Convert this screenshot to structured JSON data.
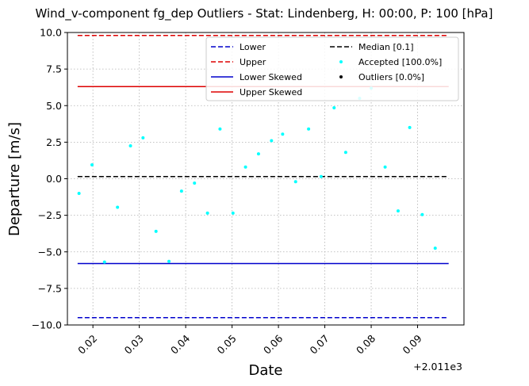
{
  "chart_data": {
    "type": "scatter",
    "title": "Wind_v-component fg_dep Outliers - Stat: Lindenberg, H: 00:00, P: 100 [hPa]",
    "xlabel": "Date",
    "ylabel": "Departure [m/s]",
    "x_offset_label": "+2.011e3",
    "xlim": [
      0.0145,
      0.1
    ],
    "ylim": [
      -10.0,
      10.0
    ],
    "x_ticks": [
      0.02,
      0.03,
      0.04,
      0.05,
      0.06,
      0.07,
      0.08,
      0.09
    ],
    "x_tick_labels": [
      "0.02",
      "0.03",
      "0.04",
      "0.05",
      "0.06",
      "0.07",
      "0.08",
      "0.09"
    ],
    "y_ticks": [
      -10.0,
      -7.5,
      -5.0,
      -2.5,
      0.0,
      2.5,
      5.0,
      7.5,
      10.0
    ],
    "y_tick_labels": [
      "−10.0",
      "−7.5",
      "−5.0",
      "−2.5",
      "0.0",
      "2.5",
      "5.0",
      "7.5",
      "10.0"
    ],
    "grid": true,
    "legend_position": "top-right",
    "hlines": [
      {
        "name": "Lower",
        "y": -9.5,
        "x_start": 0.0167,
        "x_end": 0.0967,
        "color": "#0000cc",
        "style": "dashed"
      },
      {
        "name": "Upper",
        "y": 9.8,
        "x_start": 0.0167,
        "x_end": 0.0967,
        "color": "#dd0000",
        "style": "dashed"
      },
      {
        "name": "Lower Skewed",
        "y": -5.8,
        "x_start": 0.0167,
        "x_end": 0.0967,
        "color": "#0000cc",
        "style": "solid"
      },
      {
        "name": "Upper Skewed",
        "y": 6.3,
        "x_start": 0.0167,
        "x_end": 0.0967,
        "color": "#dd0000",
        "style": "solid"
      },
      {
        "name": "Median [0.1]",
        "y": 0.15,
        "x_start": 0.0167,
        "x_end": 0.0967,
        "color": "#000000",
        "style": "dashed"
      }
    ],
    "series": [
      {
        "name": "Accepted [100.0%]",
        "color": "#00ffff",
        "points": [
          {
            "x": 0.017,
            "y": -1.0
          },
          {
            "x": 0.0198,
            "y": 0.95
          },
          {
            "x": 0.0225,
            "y": -5.7
          },
          {
            "x": 0.0253,
            "y": -1.95
          },
          {
            "x": 0.0281,
            "y": 2.25
          },
          {
            "x": 0.0308,
            "y": 2.8
          },
          {
            "x": 0.0336,
            "y": -3.6
          },
          {
            "x": 0.0364,
            "y": -5.65
          },
          {
            "x": 0.0391,
            "y": -0.85
          },
          {
            "x": 0.0419,
            "y": -0.3
          },
          {
            "x": 0.0447,
            "y": -2.35
          },
          {
            "x": 0.0474,
            "y": 3.4
          },
          {
            "x": 0.0502,
            "y": -2.35
          },
          {
            "x": 0.0529,
            "y": 0.8
          },
          {
            "x": 0.0557,
            "y": 1.7
          },
          {
            "x": 0.0585,
            "y": 2.6
          },
          {
            "x": 0.0609,
            "y": 3.05
          },
          {
            "x": 0.0637,
            "y": -0.2
          },
          {
            "x": 0.0665,
            "y": 3.4
          },
          {
            "x": 0.0692,
            "y": 0.15
          },
          {
            "x": 0.072,
            "y": 4.85
          },
          {
            "x": 0.0745,
            "y": 1.8
          },
          {
            "x": 0.0775,
            "y": 5.5
          },
          {
            "x": 0.08,
            "y": 6.2
          },
          {
            "x": 0.083,
            "y": 0.8
          },
          {
            "x": 0.0858,
            "y": -2.2
          },
          {
            "x": 0.0883,
            "y": 3.5
          },
          {
            "x": 0.091,
            "y": -2.45
          },
          {
            "x": 0.0938,
            "y": -4.75
          }
        ]
      },
      {
        "name": "Outliers [0.0%]",
        "color": "#000000",
        "points": []
      }
    ]
  },
  "legend": {
    "items": [
      {
        "label": "Lower",
        "kind": "dashed",
        "color": "#0000cc"
      },
      {
        "label": "Upper",
        "kind": "dashed",
        "color": "#dd0000"
      },
      {
        "label": "Lower Skewed",
        "kind": "solid",
        "color": "#0000cc"
      },
      {
        "label": "Upper Skewed",
        "kind": "solid",
        "color": "#dd0000"
      },
      {
        "label": "Median [0.1]",
        "kind": "dashed",
        "color": "#000000"
      },
      {
        "label": "Accepted [100.0%]",
        "kind": "dot",
        "color": "#00ffff"
      },
      {
        "label": "Outliers [0.0%]",
        "kind": "dot",
        "color": "#000000"
      }
    ]
  }
}
